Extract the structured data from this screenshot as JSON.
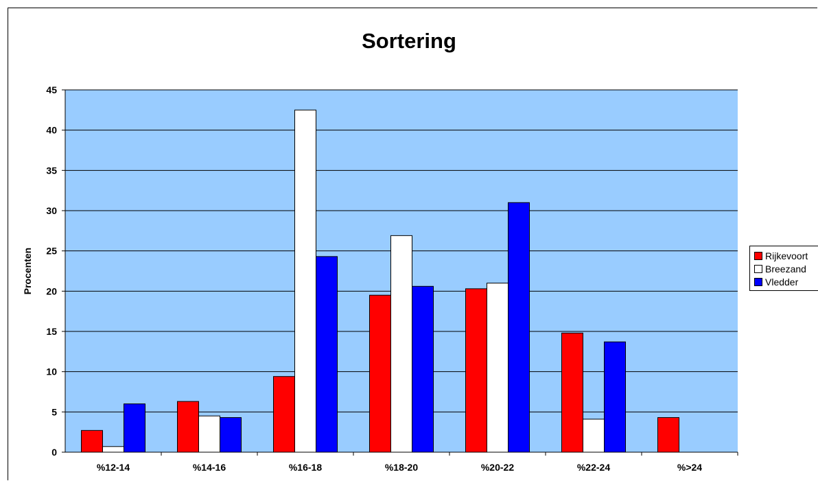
{
  "chart_data": {
    "type": "bar",
    "title": "Sortering",
    "xlabel": "",
    "ylabel": "Procenten",
    "ylim": [
      0,
      45
    ],
    "yticks": [
      0,
      5,
      10,
      15,
      20,
      25,
      30,
      35,
      40,
      45
    ],
    "categories": [
      "%12-14",
      "%14-16",
      "%16-18",
      "%18-20",
      "%20-22",
      "%22-24",
      "%>24"
    ],
    "series": [
      {
        "name": "Rijkevoort",
        "color": "#ff0000",
        "values": [
          2.7,
          6.3,
          9.4,
          19.5,
          20.3,
          14.8,
          4.3
        ]
      },
      {
        "name": "Breezand",
        "color": "#ffffff",
        "values": [
          0.7,
          4.5,
          42.5,
          26.9,
          21.0,
          4.1,
          null
        ]
      },
      {
        "name": "Vledder",
        "color": "#0000ff",
        "values": [
          6.0,
          4.3,
          24.3,
          20.6,
          31.0,
          13.7,
          null
        ]
      }
    ],
    "plot_background": "#99ccff",
    "grid": true,
    "legend_position": "right"
  }
}
